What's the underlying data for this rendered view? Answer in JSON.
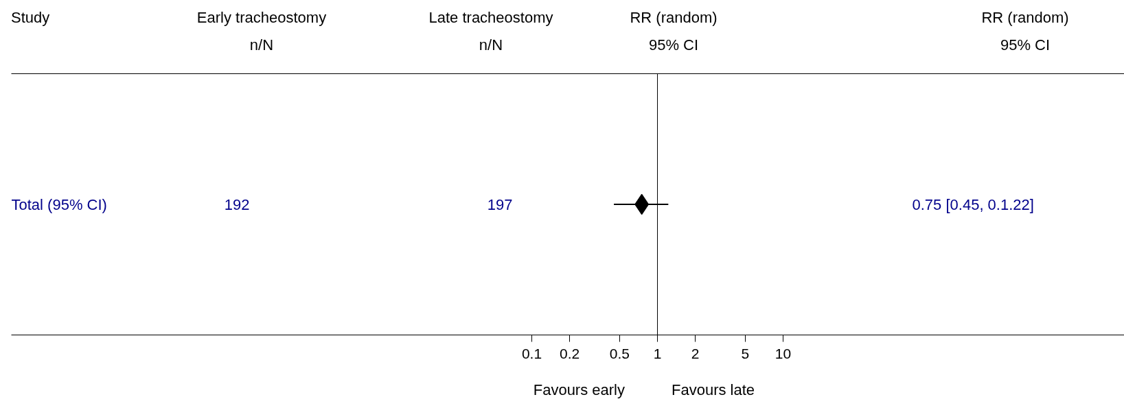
{
  "chart_data": {
    "type": "scatter",
    "orientation": "horizontal",
    "log": "x",
    "marker": "diamond",
    "color": "#000000",
    "categories": [
      "Total (95% CI)"
    ],
    "values": [
      0.75
    ],
    "errors": [
      [
        0.45,
        1.22
      ]
    ],
    "xlim": [
      7.2e-06,
      5200
    ],
    "xticks": [
      0.1,
      0.2,
      0.5,
      1,
      2,
      5,
      10
    ],
    "ref_lines": [
      {
        "axis": "x",
        "value": 1
      }
    ],
    "annotations": [
      "Study",
      "Early tracheostomy\nn/N",
      "Late tracheostomy\nn/N",
      "RR (random)\n95% CI",
      "RR (random)\n95% CI",
      "192",
      "197",
      "0.75 [0.45, 0.1.22]",
      "Favours early",
      "Favours late"
    ]
  }
}
